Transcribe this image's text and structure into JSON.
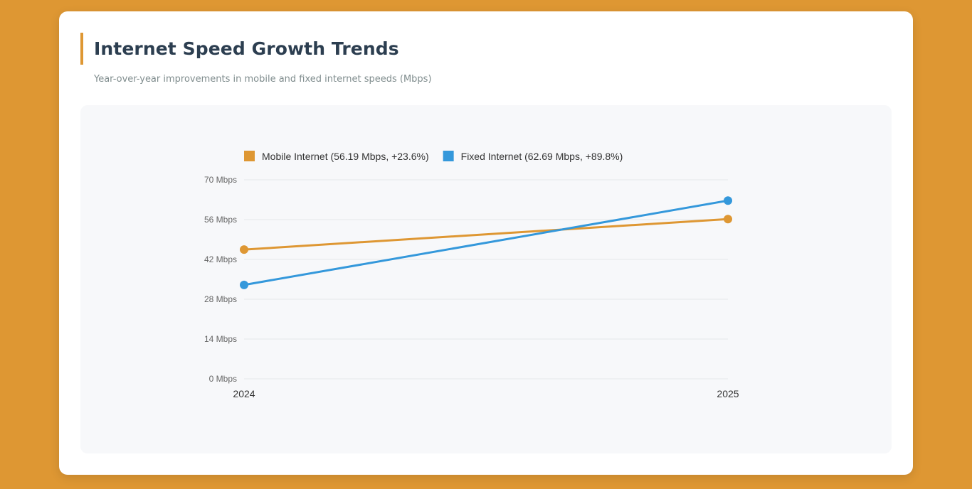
{
  "header": {
    "title": "Internet Speed Growth Trends",
    "subtitle": "Year-over-year improvements in mobile and fixed internet speeds (Mbps)"
  },
  "colors": {
    "background": "#DE9733",
    "mobile": "#DE9733",
    "fixed": "#3498DB",
    "grid": "#E5E7EB"
  },
  "chart_data": {
    "type": "line",
    "x": [
      "2024",
      "2025"
    ],
    "ylim": [
      0,
      70
    ],
    "yticks": [
      0,
      14,
      28,
      42,
      56,
      70
    ],
    "ytick_labels": [
      "0 Mbps",
      "14 Mbps",
      "28 Mbps",
      "42 Mbps",
      "56 Mbps",
      "70 Mbps"
    ],
    "grid": true,
    "legend": "top",
    "series": [
      {
        "name": "Mobile Internet (56.19 Mbps, +23.6%)",
        "values": [
          45.46,
          56.19
        ],
        "color": "#DE9733"
      },
      {
        "name": "Fixed Internet (62.69 Mbps, +89.8%)",
        "values": [
          33.03,
          62.69
        ],
        "color": "#3498DB"
      }
    ]
  }
}
